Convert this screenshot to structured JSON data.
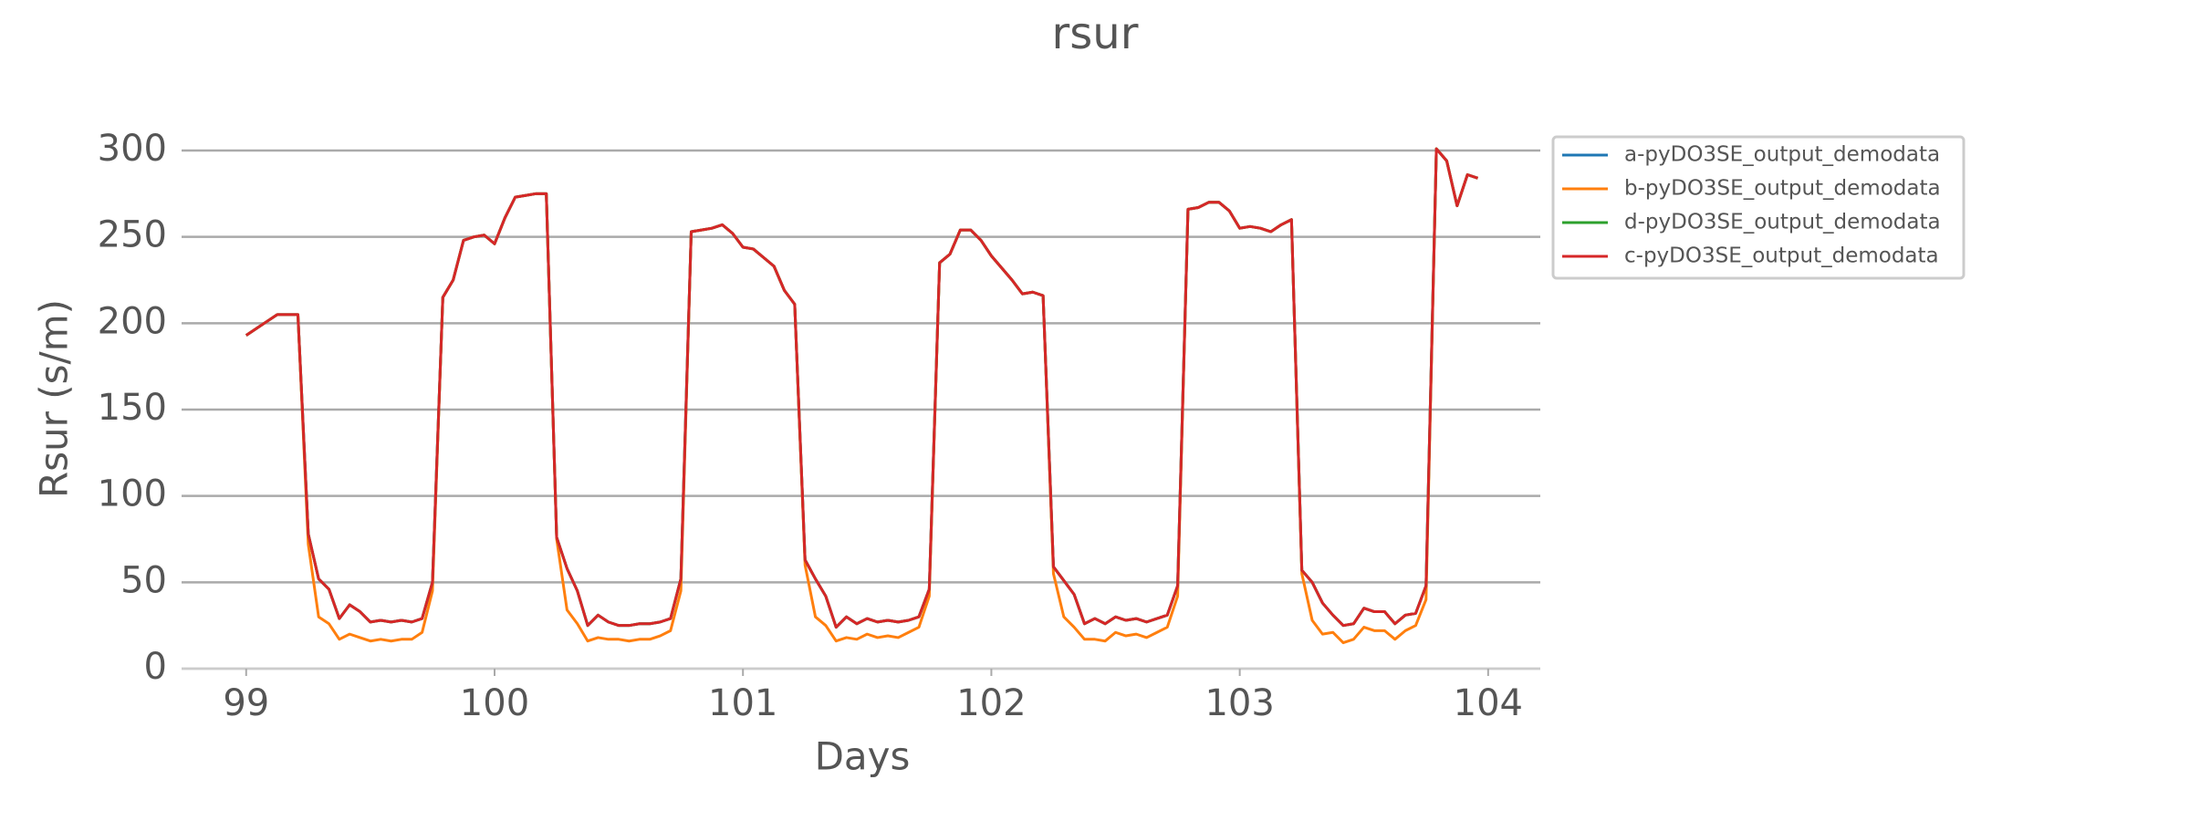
{
  "chart_data": {
    "type": "line",
    "title": "rsur",
    "xlabel": "Days",
    "ylabel": "Rsur (s/m)",
    "x": [
      99,
      99.0417,
      99.0833,
      99.125,
      99.1667,
      99.2083,
      99.25,
      99.2917,
      99.3333,
      99.375,
      99.4167,
      99.4583,
      99.5,
      99.5417,
      99.5833,
      99.625,
      99.6667,
      99.7083,
      99.75,
      99.7917,
      99.8333,
      99.875,
      99.9167,
      99.9583,
      100,
      100.0417,
      100.0833,
      100.125,
      100.1667,
      100.2083,
      100.25,
      100.2917,
      100.3333,
      100.375,
      100.4167,
      100.4583,
      100.5,
      100.5417,
      100.5833,
      100.625,
      100.6667,
      100.7083,
      100.75,
      100.7917,
      100.8333,
      100.875,
      100.9167,
      100.9583,
      101,
      101.0417,
      101.0833,
      101.125,
      101.1667,
      101.2083,
      101.25,
      101.2917,
      101.3333,
      101.375,
      101.4167,
      101.4583,
      101.5,
      101.5417,
      101.5833,
      101.625,
      101.6667,
      101.7083,
      101.75,
      101.7917,
      101.8333,
      101.875,
      101.9167,
      101.9583,
      102,
      102.0417,
      102.0833,
      102.125,
      102.1667,
      102.2083,
      102.25,
      102.2917,
      102.3333,
      102.375,
      102.4167,
      102.4583,
      102.5,
      102.5417,
      102.5833,
      102.625,
      102.6667,
      102.7083,
      102.75,
      102.7917,
      102.8333,
      102.875,
      102.9167,
      102.9583,
      103,
      103.0417,
      103.0833,
      103.125,
      103.1667,
      103.2083,
      103.25,
      103.2917,
      103.3333,
      103.375,
      103.4167,
      103.4583,
      103.5,
      103.5417,
      103.5833,
      103.625,
      103.6667,
      103.7083,
      103.75,
      103.7917,
      103.8333,
      103.875,
      103.9167,
      103.9583
    ],
    "series": [
      {
        "name": "a-pyDO3SE_output_demodata",
        "color": "#1f77b4",
        "values": [
          193,
          197,
          201,
          205,
          205,
          205,
          78,
          52,
          46,
          29,
          37,
          33,
          27,
          28,
          27,
          28,
          27,
          29,
          50,
          215,
          225,
          248,
          250,
          251,
          246,
          261,
          273,
          274,
          275,
          275,
          76,
          58,
          45,
          25,
          31,
          27,
          25,
          25,
          26,
          26,
          27,
          29,
          52,
          253,
          254,
          255,
          257,
          252,
          244,
          243,
          238,
          233,
          219,
          211,
          63,
          52,
          42,
          24,
          30,
          26,
          29,
          27,
          28,
          27,
          28,
          30,
          46,
          235,
          240,
          254,
          254,
          248,
          239,
          232,
          225,
          217,
          218,
          216,
          59,
          51,
          43,
          26,
          29,
          26,
          30,
          28,
          29,
          27,
          29,
          31,
          48,
          266,
          267,
          270,
          270,
          265,
          255,
          256,
          255,
          253,
          257,
          260,
          57,
          50,
          38,
          31,
          25,
          26,
          35,
          33,
          33,
          26,
          31,
          32,
          48,
          301,
          294,
          268,
          286,
          284
        ]
      },
      {
        "name": "b-pyDO3SE_output_demodata",
        "color": "#ff7f0e",
        "values": [
          193,
          197,
          201,
          205,
          205,
          205,
          72,
          30,
          26,
          17,
          20,
          18,
          16,
          17,
          16,
          17,
          17,
          21,
          45,
          215,
          225,
          248,
          250,
          251,
          246,
          261,
          273,
          274,
          275,
          275,
          75,
          34,
          26,
          16,
          18,
          17,
          17,
          16,
          17,
          17,
          19,
          22,
          45,
          253,
          254,
          255,
          257,
          252,
          244,
          243,
          238,
          233,
          219,
          211,
          60,
          30,
          25,
          16,
          18,
          17,
          20,
          18,
          19,
          18,
          21,
          24,
          42,
          235,
          240,
          254,
          254,
          248,
          239,
          232,
          225,
          217,
          218,
          216,
          55,
          30,
          24,
          17,
          17,
          16,
          21,
          19,
          20,
          18,
          21,
          24,
          42,
          266,
          267,
          270,
          270,
          265,
          255,
          256,
          255,
          253,
          257,
          260,
          55,
          28,
          20,
          21,
          15,
          17,
          24,
          22,
          22,
          17,
          22,
          25,
          40,
          301,
          294,
          268,
          286,
          284
        ]
      },
      {
        "name": "d-pyDO3SE_output_demodata",
        "color": "#2ca02c",
        "values": [
          193,
          197,
          201,
          205,
          205,
          205,
          78,
          52,
          46,
          29,
          37,
          33,
          27,
          28,
          27,
          28,
          27,
          29,
          50,
          215,
          225,
          248,
          250,
          251,
          246,
          261,
          273,
          274,
          275,
          275,
          76,
          58,
          45,
          25,
          31,
          27,
          25,
          25,
          26,
          26,
          27,
          29,
          52,
          253,
          254,
          255,
          257,
          252,
          244,
          243,
          238,
          233,
          219,
          211,
          63,
          52,
          42,
          24,
          30,
          26,
          29,
          27,
          28,
          27,
          28,
          30,
          46,
          235,
          240,
          254,
          254,
          248,
          239,
          232,
          225,
          217,
          218,
          216,
          59,
          51,
          43,
          26,
          29,
          26,
          30,
          28,
          29,
          27,
          29,
          31,
          48,
          266,
          267,
          270,
          270,
          265,
          255,
          256,
          255,
          253,
          257,
          260,
          57,
          50,
          38,
          31,
          25,
          26,
          35,
          33,
          33,
          26,
          31,
          32,
          48,
          301,
          294,
          268,
          286,
          284
        ]
      },
      {
        "name": "c-pyDO3SE_output_demodata",
        "color": "#d62728",
        "values": [
          193,
          197,
          201,
          205,
          205,
          205,
          78,
          52,
          46,
          29,
          37,
          33,
          27,
          28,
          27,
          28,
          27,
          29,
          50,
          215,
          225,
          248,
          250,
          251,
          246,
          261,
          273,
          274,
          275,
          275,
          76,
          58,
          45,
          25,
          31,
          27,
          25,
          25,
          26,
          26,
          27,
          29,
          52,
          253,
          254,
          255,
          257,
          252,
          244,
          243,
          238,
          233,
          219,
          211,
          63,
          52,
          42,
          24,
          30,
          26,
          29,
          27,
          28,
          27,
          28,
          30,
          46,
          235,
          240,
          254,
          254,
          248,
          239,
          232,
          225,
          217,
          218,
          216,
          59,
          51,
          43,
          26,
          29,
          26,
          30,
          28,
          29,
          27,
          29,
          31,
          48,
          266,
          267,
          270,
          270,
          265,
          255,
          256,
          255,
          253,
          257,
          260,
          57,
          50,
          38,
          31,
          25,
          26,
          35,
          33,
          33,
          26,
          31,
          32,
          48,
          301,
          294,
          268,
          286,
          284
        ]
      }
    ],
    "xlim": [
      98.74,
      104.21
    ],
    "xticks": [
      99,
      100,
      101,
      102,
      103,
      104
    ],
    "ylim": [
      0,
      300
    ],
    "yticks": [
      0,
      50,
      100,
      150,
      200,
      250,
      300
    ],
    "grid": true
  }
}
